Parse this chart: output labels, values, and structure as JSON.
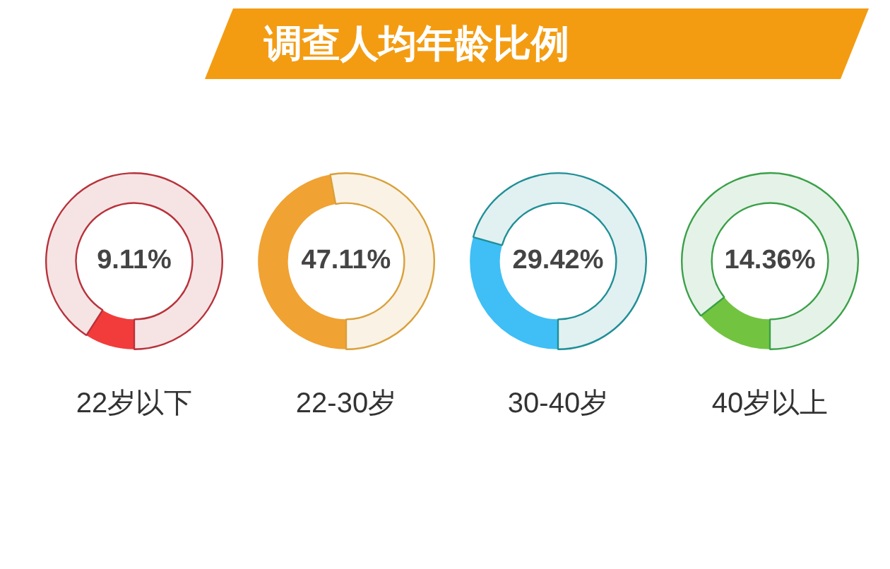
{
  "chart_data": [
    {
      "type": "other",
      "title": "调查人均年龄比例"
    },
    {
      "type": "donut",
      "categories": [
        "22岁以下",
        null
      ],
      "values": [
        9.11,
        90.89
      ],
      "colors": [
        "#f23c3c",
        "#b8323a"
      ],
      "annotations": [
        "9.11%"
      ]
    },
    {
      "type": "donut",
      "categories": [
        "22-30岁",
        null
      ],
      "values": [
        47.11,
        52.89
      ],
      "colors": [
        "#f0a233",
        "#d9a03a"
      ],
      "annotations": [
        "47.11%"
      ]
    },
    {
      "type": "donut",
      "categories": [
        "30-40岁",
        null
      ],
      "values": [
        29.42,
        70.58
      ],
      "colors": [
        "#3fbff5",
        "#1f8f96"
      ],
      "annotations": [
        "29.42%"
      ]
    },
    {
      "type": "donut",
      "categories": [
        "40岁以上",
        null
      ],
      "values": [
        14.36,
        85.64
      ],
      "colors": [
        "#72c440",
        "#3aa048"
      ],
      "annotations": [
        "14.36%"
      ]
    }
  ]
}
